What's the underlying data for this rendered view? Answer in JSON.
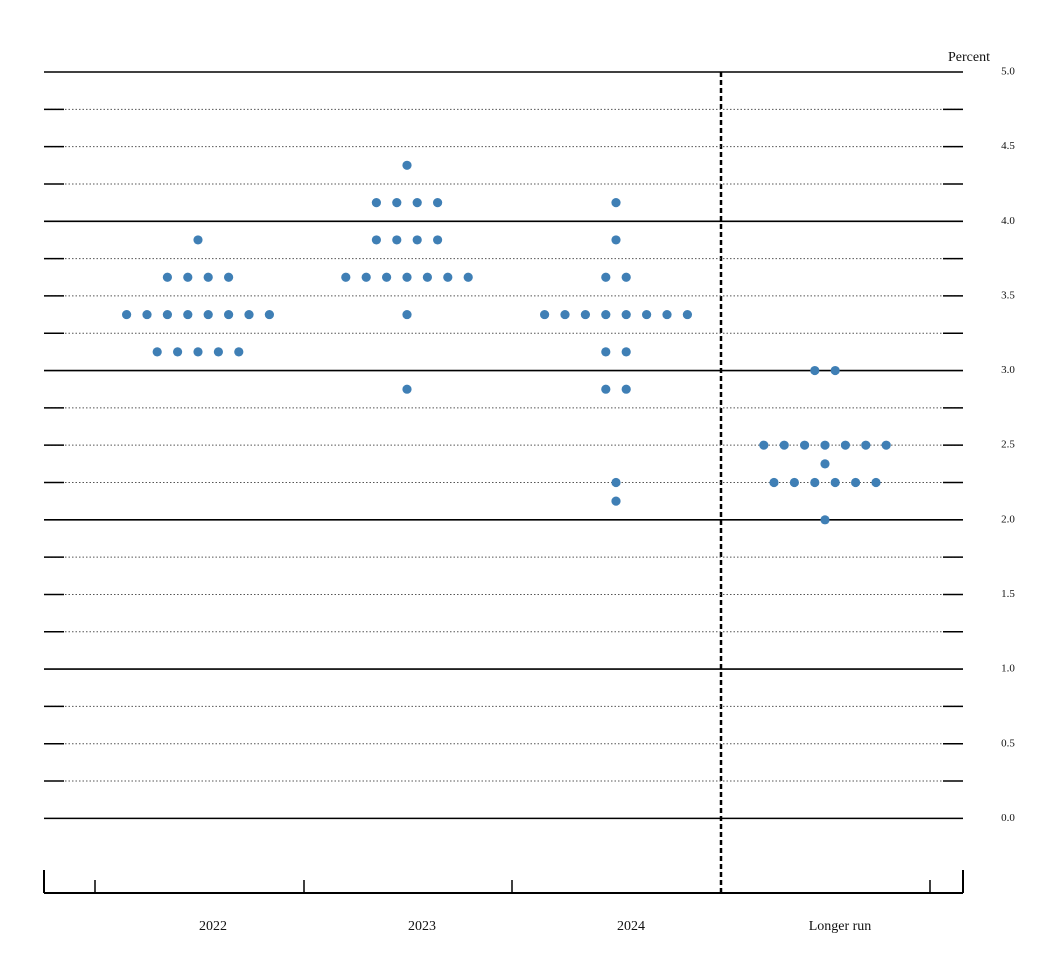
{
  "chart_data": {
    "type": "dot",
    "y_label": "Percent",
    "categories": [
      "2022",
      "2023",
      "2024",
      "Longer run"
    ],
    "dots": [
      [
        3.875,
        3.625,
        3.625,
        3.625,
        3.625,
        3.375,
        3.375,
        3.375,
        3.375,
        3.375,
        3.375,
        3.375,
        3.375,
        3.125,
        3.125,
        3.125,
        3.125,
        3.125
      ],
      [
        4.375,
        4.125,
        4.125,
        4.125,
        4.125,
        3.875,
        3.875,
        3.875,
        3.875,
        3.625,
        3.625,
        3.625,
        3.625,
        3.625,
        3.625,
        3.625,
        3.375,
        2.875
      ],
      [
        4.125,
        3.875,
        3.625,
        3.625,
        3.375,
        3.375,
        3.375,
        3.375,
        3.375,
        3.375,
        3.375,
        3.375,
        3.125,
        3.125,
        2.875,
        2.875,
        2.25,
        2.125
      ],
      [
        3.0,
        3.0,
        2.5,
        2.5,
        2.5,
        2.5,
        2.5,
        2.5,
        2.5,
        2.375,
        2.25,
        2.25,
        2.25,
        2.25,
        2.25,
        2.25,
        2.0
      ]
    ],
    "color": "#3f7fb5",
    "ylim": [
      -0.5,
      5.0
    ],
    "yticks": [
      {
        "value": 5,
        "label": "5.0"
      },
      4.5,
      {
        "value": 4,
        "label": "4.0"
      },
      3.5,
      {
        "value": 3,
        "label": "3.0"
      },
      2.5,
      {
        "value": 2,
        "label": "2.0"
      },
      1.5,
      {
        "value": 1,
        "label": "1.0"
      },
      0.5,
      {
        "value": 0,
        "label": "0.0"
      }
    ],
    "minor_yticks": [
      4.75,
      4.25,
      3.75,
      3.25,
      2.75,
      2.25,
      1.75,
      1.25,
      0.75,
      0.25
    ],
    "grid": true
  }
}
